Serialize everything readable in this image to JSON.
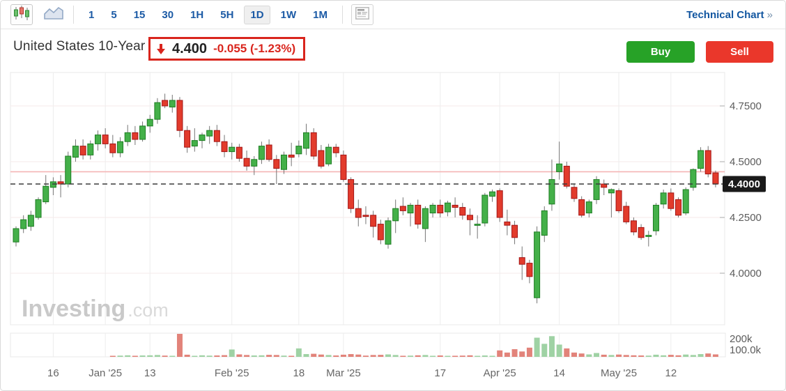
{
  "toolbar": {
    "chart_type_buttons": [
      {
        "name": "candlestick-chart",
        "selected": true
      },
      {
        "name": "area-chart",
        "selected": false
      }
    ],
    "timeframes": [
      "1",
      "5",
      "15",
      "30",
      "1H",
      "5H",
      "1D",
      "1W",
      "1M"
    ],
    "selected_timeframe": "1D",
    "news_button": "news-panel",
    "technical_chart_label": "Technical Chart",
    "technical_chart_arrow": "»"
  },
  "header": {
    "title": "United States 10-Year",
    "direction": "down",
    "price": "4.400",
    "change": "-0.055",
    "change_pct": "(-1.23%)",
    "buy_label": "Buy",
    "sell_label": "Sell"
  },
  "watermark": {
    "bold": "Investing",
    "light": ".com"
  },
  "axes": {
    "y_axis": [
      {
        "value": 4.75,
        "label": "4.7500"
      },
      {
        "value": 4.5,
        "label": "4.5000"
      },
      {
        "value": 4.25,
        "label": "4.2500"
      },
      {
        "value": 4.0,
        "label": "4.0000"
      }
    ],
    "price_tag": "4.4000",
    "volume_labels": [
      "200k",
      "100.0k"
    ]
  },
  "chart_data": {
    "type": "candlestick+volume",
    "title": "United States 10-Year daily yield",
    "ylim": [
      3.85,
      4.9
    ],
    "last_price": 4.4,
    "prev_close": 4.455,
    "x_gridlines": [
      {
        "i": 5,
        "label": "16"
      },
      {
        "i": 12,
        "label": "Jan '25"
      },
      {
        "i": 18,
        "label": "13"
      },
      {
        "i": 29,
        "label": "Feb '25"
      },
      {
        "i": 38,
        "label": "18"
      },
      {
        "i": 44,
        "label": "Mar '25"
      },
      {
        "i": 57,
        "label": "17"
      },
      {
        "i": 65,
        "label": "Apr '25"
      },
      {
        "i": 73,
        "label": "14"
      },
      {
        "i": 81,
        "label": "May '25"
      },
      {
        "i": 88,
        "label": "12"
      }
    ],
    "candles_format": [
      "open",
      "high",
      "low",
      "close",
      "volume_k"
    ],
    "candles": [
      [
        4.14,
        4.21,
        4.12,
        4.2,
        0
      ],
      [
        4.2,
        4.26,
        4.18,
        4.24,
        0
      ],
      [
        4.21,
        4.28,
        4.19,
        4.26,
        0
      ],
      [
        4.25,
        4.34,
        4.24,
        4.33,
        0
      ],
      [
        4.32,
        4.44,
        4.31,
        4.39,
        0
      ],
      [
        4.385,
        4.43,
        4.35,
        4.41,
        0
      ],
      [
        4.41,
        4.44,
        4.34,
        4.4,
        0
      ],
      [
        4.4,
        4.545,
        4.385,
        4.525,
        0
      ],
      [
        4.52,
        4.6,
        4.5,
        4.57,
        0
      ],
      [
        4.57,
        4.6,
        4.51,
        4.53,
        0
      ],
      [
        4.53,
        4.595,
        4.51,
        4.58,
        0
      ],
      [
        4.58,
        4.64,
        4.55,
        4.62,
        0
      ],
      [
        4.62,
        4.65,
        4.56,
        4.58,
        0
      ],
      [
        4.58,
        4.62,
        4.52,
        4.54,
        6
      ],
      [
        4.54,
        4.61,
        4.52,
        4.59,
        8
      ],
      [
        4.59,
        4.665,
        4.57,
        4.63,
        10
      ],
      [
        4.63,
        4.66,
        4.575,
        4.6,
        7
      ],
      [
        4.6,
        4.68,
        4.59,
        4.66,
        9
      ],
      [
        4.66,
        4.71,
        4.63,
        4.69,
        10
      ],
      [
        4.69,
        4.785,
        4.67,
        4.765,
        12
      ],
      [
        4.775,
        4.805,
        4.74,
        4.75,
        8
      ],
      [
        4.745,
        4.8,
        4.72,
        4.775,
        7
      ],
      [
        4.775,
        4.79,
        4.61,
        4.64,
        150
      ],
      [
        4.64,
        4.66,
        4.54,
        4.565,
        14
      ],
      [
        4.57,
        4.65,
        4.545,
        4.595,
        6
      ],
      [
        4.595,
        4.63,
        4.56,
        4.62,
        10
      ],
      [
        4.615,
        4.66,
        4.58,
        4.64,
        8
      ],
      [
        4.64,
        4.665,
        4.57,
        4.59,
        9
      ],
      [
        4.59,
        4.62,
        4.52,
        4.545,
        11
      ],
      [
        4.545,
        4.585,
        4.51,
        4.565,
        48
      ],
      [
        4.565,
        4.58,
        4.5,
        4.515,
        16
      ],
      [
        4.515,
        4.55,
        4.46,
        4.48,
        12
      ],
      [
        4.48,
        4.525,
        4.44,
        4.51,
        9
      ],
      [
        4.51,
        4.59,
        4.49,
        4.57,
        10
      ],
      [
        4.575,
        4.6,
        4.5,
        4.51,
        13
      ],
      [
        4.51,
        4.53,
        4.4,
        4.47,
        12
      ],
      [
        4.465,
        4.545,
        4.445,
        4.53,
        8
      ],
      [
        4.53,
        4.585,
        4.48,
        4.52,
        7
      ],
      [
        4.535,
        4.595,
        4.52,
        4.57,
        55
      ],
      [
        4.56,
        4.67,
        4.53,
        4.63,
        18
      ],
      [
        4.63,
        4.65,
        4.51,
        4.525,
        20
      ],
      [
        4.55,
        4.575,
        4.47,
        4.48,
        15
      ],
      [
        4.49,
        4.58,
        4.48,
        4.565,
        12
      ],
      [
        4.565,
        4.58,
        4.52,
        4.54,
        9
      ],
      [
        4.53,
        4.55,
        4.41,
        4.42,
        14
      ],
      [
        4.42,
        4.43,
        4.27,
        4.29,
        18
      ],
      [
        4.29,
        4.33,
        4.21,
        4.25,
        15
      ],
      [
        4.26,
        4.3,
        4.22,
        4.255,
        8
      ],
      [
        4.26,
        4.28,
        4.16,
        4.21,
        12
      ],
      [
        4.22,
        4.24,
        4.13,
        4.15,
        13
      ],
      [
        4.13,
        4.25,
        4.11,
        4.235,
        16
      ],
      [
        4.235,
        4.33,
        4.18,
        4.29,
        12
      ],
      [
        4.3,
        4.34,
        4.26,
        4.28,
        7
      ],
      [
        4.27,
        4.315,
        4.21,
        4.305,
        8
      ],
      [
        4.305,
        4.33,
        4.2,
        4.22,
        10
      ],
      [
        4.2,
        4.3,
        4.14,
        4.29,
        12
      ],
      [
        4.27,
        4.315,
        4.25,
        4.305,
        7
      ],
      [
        4.305,
        4.33,
        4.25,
        4.27,
        9
      ],
      [
        4.275,
        4.325,
        4.255,
        4.315,
        6
      ],
      [
        4.305,
        4.34,
        4.25,
        4.295,
        7
      ],
      [
        4.295,
        4.315,
        4.24,
        4.26,
        8
      ],
      [
        4.26,
        4.29,
        4.17,
        4.24,
        10
      ],
      [
        4.22,
        4.26,
        4.155,
        4.22,
        6
      ],
      [
        4.225,
        4.36,
        4.21,
        4.35,
        9
      ],
      [
        4.345,
        4.375,
        4.32,
        4.365,
        7
      ],
      [
        4.37,
        4.38,
        4.23,
        4.25,
        42
      ],
      [
        4.23,
        4.285,
        4.17,
        4.215,
        28
      ],
      [
        4.215,
        4.235,
        4.13,
        4.16,
        50
      ],
      [
        4.07,
        4.12,
        3.97,
        4.04,
        35
      ],
      [
        4.045,
        4.06,
        3.955,
        3.985,
        60
      ],
      [
        3.89,
        4.21,
        3.865,
        4.185,
        125
      ],
      [
        4.17,
        4.3,
        4.14,
        4.28,
        85
      ],
      [
        4.31,
        4.51,
        4.28,
        4.42,
        135
      ],
      [
        4.455,
        4.59,
        4.42,
        4.49,
        80
      ],
      [
        4.48,
        4.5,
        4.38,
        4.39,
        55
      ],
      [
        4.385,
        4.4,
        4.32,
        4.335,
        28
      ],
      [
        4.33,
        4.345,
        4.25,
        4.26,
        22
      ],
      [
        4.27,
        4.33,
        4.25,
        4.32,
        16
      ],
      [
        4.33,
        4.435,
        4.31,
        4.42,
        25
      ],
      [
        4.4,
        4.42,
        4.35,
        4.385,
        14
      ],
      [
        4.36,
        4.38,
        4.25,
        4.375,
        12
      ],
      [
        4.37,
        4.38,
        4.27,
        4.28,
        15
      ],
      [
        4.3,
        4.32,
        4.22,
        4.23,
        12
      ],
      [
        4.235,
        4.25,
        4.17,
        4.185,
        10
      ],
      [
        4.205,
        4.22,
        4.15,
        4.16,
        9
      ],
      [
        4.165,
        4.19,
        4.12,
        4.17,
        8
      ],
      [
        4.19,
        4.315,
        4.17,
        4.305,
        14
      ],
      [
        4.31,
        4.375,
        4.29,
        4.36,
        10
      ],
      [
        4.36,
        4.38,
        4.28,
        4.29,
        13
      ],
      [
        4.33,
        4.34,
        4.25,
        4.26,
        10
      ],
      [
        4.27,
        4.385,
        4.26,
        4.375,
        15
      ],
      [
        4.385,
        4.47,
        4.37,
        4.465,
        12
      ],
      [
        4.47,
        4.565,
        4.455,
        4.55,
        18
      ],
      [
        4.55,
        4.57,
        4.43,
        4.445,
        22
      ],
      [
        4.45,
        4.46,
        4.385,
        4.4,
        16
      ]
    ],
    "colors": {
      "up_fill": "#44b049",
      "up_border": "#1e7d23",
      "down_fill": "#e23b2c",
      "down_border": "#a31515",
      "wick": "#757575",
      "vol_up": "#9fd2a4",
      "vol_down": "#e2837a",
      "grid_h": "#f6eaea",
      "grid_v": "#ededed",
      "pane_border": "#e8e8e8",
      "prev_close_line": "#f5b5b5",
      "current_price_line": "#3a3a3a",
      "tag_bg": "#1a1a1a",
      "tag_text": "#ffffff",
      "axis_text": "#5c5c5c",
      "watermark_bold": "#c9c9c9",
      "watermark_light": "#dadada"
    }
  }
}
